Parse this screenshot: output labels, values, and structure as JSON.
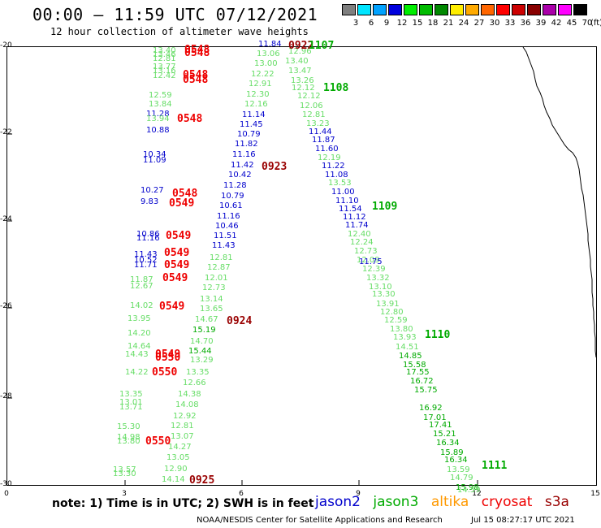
{
  "header": {
    "title": "00:00 – 11:59 UTC 07/12/2021",
    "subtitle": "12 hour collection of altimeter wave heights"
  },
  "legend": {
    "unit": "(ft)",
    "bins": [
      {
        "label": "3",
        "color": "#7f7f7f"
      },
      {
        "label": "6",
        "color": "#00e5ff"
      },
      {
        "label": "9",
        "color": "#00a2ff"
      },
      {
        "label": "12",
        "color": "#0000dd"
      },
      {
        "label": "15",
        "color": "#00ee00"
      },
      {
        "label": "18",
        "color": "#00bb00"
      },
      {
        "label": "21",
        "color": "#008800"
      },
      {
        "label": "24",
        "color": "#ffee00"
      },
      {
        "label": "27",
        "color": "#ffaa00"
      },
      {
        "label": "30",
        "color": "#ff6600"
      },
      {
        "label": "33",
        "color": "#ff0000"
      },
      {
        "label": "36",
        "color": "#cc0000"
      },
      {
        "label": "39",
        "color": "#880000"
      },
      {
        "label": "42",
        "color": "#aa00aa"
      },
      {
        "label": "45",
        "color": "#ff00ff"
      },
      {
        "label": "70",
        "color": "#000000"
      }
    ]
  },
  "colors": {
    "jason2": "#0000cc",
    "jason3": "#00aa00",
    "altika": "#ff9900",
    "cryosat": "#ee0000",
    "s3a": "#990000",
    "light_green": "#66dd66",
    "blue_obs": "#0000cc",
    "coast": "#000000"
  },
  "axes": {
    "yticks": [
      "-20",
      "-22",
      "-24",
      "-26",
      "-28",
      "-30"
    ],
    "xticks": [
      "0",
      "3",
      "6",
      "9",
      "12",
      "15"
    ]
  },
  "passes": [
    {
      "text": "0548",
      "color": "cryosat"
    },
    {
      "text": "0548",
      "color": "cryosat"
    },
    {
      "text": "0548",
      "color": "cryosat"
    },
    {
      "text": "0548",
      "color": "cryosat"
    },
    {
      "text": "0548",
      "color": "cryosat"
    },
    {
      "text": "0548",
      "color": "cryosat"
    },
    {
      "text": "0549",
      "color": "cryosat"
    },
    {
      "text": "0549",
      "color": "cryosat"
    },
    {
      "text": "0549",
      "color": "cryosat"
    },
    {
      "text": "0549",
      "color": "cryosat"
    },
    {
      "text": "0549",
      "color": "cryosat"
    },
    {
      "text": "0549",
      "color": "cryosat"
    },
    {
      "text": "0549",
      "color": "cryosat"
    },
    {
      "text": "0550",
      "color": "cryosat"
    },
    {
      "text": "0550",
      "color": "cryosat"
    },
    {
      "text": "0550",
      "color": "cryosat"
    },
    {
      "text": "0923",
      "color": "s3a"
    },
    {
      "text": "0924",
      "color": "s3a"
    },
    {
      "text": "0925",
      "color": "s3a"
    },
    {
      "text": "0922",
      "color": "s3a"
    },
    {
      "text": "1107",
      "color": "jason3"
    },
    {
      "text": "1108",
      "color": "jason3"
    },
    {
      "text": "1109",
      "color": "jason3"
    },
    {
      "text": "1110",
      "color": "jason3"
    },
    {
      "text": "1111",
      "color": "jason3"
    }
  ],
  "obs_a": [
    {
      "t": "13.40",
      "c": "light_green"
    },
    {
      "t": "13.46",
      "c": "light_green"
    },
    {
      "t": "12.81",
      "c": "light_green"
    },
    {
      "t": "13.77",
      "c": "light_green"
    },
    {
      "t": "13.16",
      "c": "light_green"
    },
    {
      "t": "12.42",
      "c": "light_green"
    },
    {
      "t": "12.59",
      "c": "light_green"
    },
    {
      "t": "13.84",
      "c": "light_green"
    },
    {
      "t": "11.28",
      "c": "blue_obs"
    },
    {
      "t": "13.94",
      "c": "light_green"
    },
    {
      "t": "10.88",
      "c": "blue_obs"
    },
    {
      "t": "10.34",
      "c": "blue_obs"
    },
    {
      "t": "11.09",
      "c": "blue_obs"
    },
    {
      "t": "10.27",
      "c": "blue_obs"
    },
    {
      "t": "9.83",
      "c": "blue_obs"
    },
    {
      "t": "10.86",
      "c": "blue_obs"
    },
    {
      "t": "11.16",
      "c": "blue_obs"
    },
    {
      "t": "11.43",
      "c": "blue_obs"
    },
    {
      "t": "10.52",
      "c": "blue_obs"
    },
    {
      "t": "11.71",
      "c": "blue_obs"
    },
    {
      "t": "11.87",
      "c": "light_green"
    },
    {
      "t": "12.67",
      "c": "light_green"
    },
    {
      "t": "14.02",
      "c": "light_green"
    },
    {
      "t": "13.95",
      "c": "light_green"
    },
    {
      "t": "14.20",
      "c": "light_green"
    },
    {
      "t": "14.64",
      "c": "light_green"
    },
    {
      "t": "14.43",
      "c": "light_green"
    },
    {
      "t": "14.22",
      "c": "light_green"
    },
    {
      "t": "13.35",
      "c": "light_green"
    },
    {
      "t": "13.01",
      "c": "light_green"
    },
    {
      "t": "13.71",
      "c": "light_green"
    },
    {
      "t": "15.30",
      "c": "light_green"
    },
    {
      "t": "14.98",
      "c": "light_green"
    },
    {
      "t": "13.80",
      "c": "light_green"
    },
    {
      "t": "13.57",
      "c": "light_green"
    },
    {
      "t": "13.30",
      "c": "light_green"
    }
  ],
  "obs_b": [
    {
      "t": "15.44",
      "c": "jason3"
    },
    {
      "t": "14.70",
      "c": "light_green"
    },
    {
      "t": "15.19",
      "c": "jason3"
    },
    {
      "t": "14.67",
      "c": "light_green"
    },
    {
      "t": "13.65",
      "c": "light_green"
    },
    {
      "t": "13.14",
      "c": "light_green"
    },
    {
      "t": "12.73",
      "c": "light_green"
    },
    {
      "t": "12.01",
      "c": "light_green"
    },
    {
      "t": "12.87",
      "c": "light_green"
    },
    {
      "t": "12.81",
      "c": "light_green"
    },
    {
      "t": "11.43",
      "c": "blue_obs"
    },
    {
      "t": "11.51",
      "c": "blue_obs"
    },
    {
      "t": "10.46",
      "c": "blue_obs"
    },
    {
      "t": "11.16",
      "c": "blue_obs"
    },
    {
      "t": "10.61",
      "c": "blue_obs"
    },
    {
      "t": "10.79",
      "c": "blue_obs"
    },
    {
      "t": "11.28",
      "c": "blue_obs"
    },
    {
      "t": "10.42",
      "c": "blue_obs"
    },
    {
      "t": "11.42",
      "c": "blue_obs"
    },
    {
      "t": "11.16",
      "c": "blue_obs"
    },
    {
      "t": "11.82",
      "c": "blue_obs"
    },
    {
      "t": "10.79",
      "c": "blue_obs"
    },
    {
      "t": "11.45",
      "c": "blue_obs"
    },
    {
      "t": "11.14",
      "c": "blue_obs"
    },
    {
      "t": "12.16",
      "c": "light_green"
    },
    {
      "t": "12.30",
      "c": "light_green"
    },
    {
      "t": "12.91",
      "c": "light_green"
    },
    {
      "t": "12.22",
      "c": "light_green"
    },
    {
      "t": "13.00",
      "c": "light_green"
    },
    {
      "t": "13.06",
      "c": "light_green"
    },
    {
      "t": "11.84",
      "c": "blue_obs"
    },
    {
      "t": "13.29",
      "c": "light_green"
    },
    {
      "t": "13.35",
      "c": "light_green"
    },
    {
      "t": "12.66",
      "c": "light_green"
    },
    {
      "t": "14.38",
      "c": "light_green"
    },
    {
      "t": "14.08",
      "c": "light_green"
    },
    {
      "t": "12.92",
      "c": "light_green"
    },
    {
      "t": "12.81",
      "c": "light_green"
    },
    {
      "t": "13.07",
      "c": "light_green"
    },
    {
      "t": "14.27",
      "c": "light_green"
    },
    {
      "t": "13.05",
      "c": "light_green"
    },
    {
      "t": "12.90",
      "c": "light_green"
    },
    {
      "t": "14.14",
      "c": "light_green"
    }
  ],
  "obs_c": [
    {
      "t": "12.96",
      "c": "light_green"
    },
    {
      "t": "13.40",
      "c": "light_green"
    },
    {
      "t": "13.47",
      "c": "light_green"
    },
    {
      "t": "13.26",
      "c": "light_green"
    },
    {
      "t": "12.12",
      "c": "light_green"
    },
    {
      "t": "12.12",
      "c": "light_green"
    },
    {
      "t": "12.06",
      "c": "light_green"
    },
    {
      "t": "12.81",
      "c": "light_green"
    },
    {
      "t": "13.23",
      "c": "light_green"
    },
    {
      "t": "11.44",
      "c": "blue_obs"
    },
    {
      "t": "11.87",
      "c": "blue_obs"
    },
    {
      "t": "11.60",
      "c": "blue_obs"
    },
    {
      "t": "12.19",
      "c": "light_green"
    },
    {
      "t": "11.22",
      "c": "blue_obs"
    },
    {
      "t": "11.08",
      "c": "blue_obs"
    },
    {
      "t": "13.53",
      "c": "light_green"
    },
    {
      "t": "11.00",
      "c": "blue_obs"
    },
    {
      "t": "11.10",
      "c": "blue_obs"
    },
    {
      "t": "11.54",
      "c": "blue_obs"
    },
    {
      "t": "11.12",
      "c": "blue_obs"
    },
    {
      "t": "11.74",
      "c": "blue_obs"
    },
    {
      "t": "12.40",
      "c": "light_green"
    },
    {
      "t": "12.24",
      "c": "light_green"
    },
    {
      "t": "12.73",
      "c": "light_green"
    },
    {
      "t": "12.09",
      "c": "light_green"
    },
    {
      "t": "11.75",
      "c": "blue_obs"
    },
    {
      "t": "12.39",
      "c": "light_green"
    },
    {
      "t": "13.32",
      "c": "light_green"
    },
    {
      "t": "13.10",
      "c": "light_green"
    },
    {
      "t": "13.30",
      "c": "light_green"
    },
    {
      "t": "13.91",
      "c": "light_green"
    },
    {
      "t": "12.80",
      "c": "light_green"
    },
    {
      "t": "12.59",
      "c": "light_green"
    },
    {
      "t": "13.80",
      "c": "light_green"
    },
    {
      "t": "13.93",
      "c": "light_green"
    },
    {
      "t": "14.51",
      "c": "light_green"
    },
    {
      "t": "14.85",
      "c": "jason3"
    },
    {
      "t": "15.58",
      "c": "jason3"
    },
    {
      "t": "17.55",
      "c": "jason3"
    },
    {
      "t": "16.72",
      "c": "jason3"
    },
    {
      "t": "15.75",
      "c": "jason3"
    },
    {
      "t": "16.92",
      "c": "jason3"
    },
    {
      "t": "17.01",
      "c": "jason3"
    },
    {
      "t": "17.41",
      "c": "jason3"
    },
    {
      "t": "15.21",
      "c": "jason3"
    },
    {
      "t": "16.34",
      "c": "jason3"
    },
    {
      "t": "15.89",
      "c": "jason3"
    },
    {
      "t": "16.34",
      "c": "jason3"
    },
    {
      "t": "13.59",
      "c": "light_green"
    },
    {
      "t": "14.79",
      "c": "light_green"
    },
    {
      "t": "15.98",
      "c": "jason3"
    },
    {
      "t": "14.59",
      "c": "light_green"
    }
  ],
  "footer": {
    "note": "note: 1) Time is in UTC; 2) SWH is in feet",
    "sat_jason2": "jason2",
    "sat_jason3": "jason3",
    "sat_altika": "altika",
    "sat_cryosat": "cryosat",
    "sat_s3a": "s3a",
    "credit": "NOAA/NESDIS Center for Satellite Applications and Research",
    "stamp": "Jul 15 08:27:17 UTC 2021"
  }
}
